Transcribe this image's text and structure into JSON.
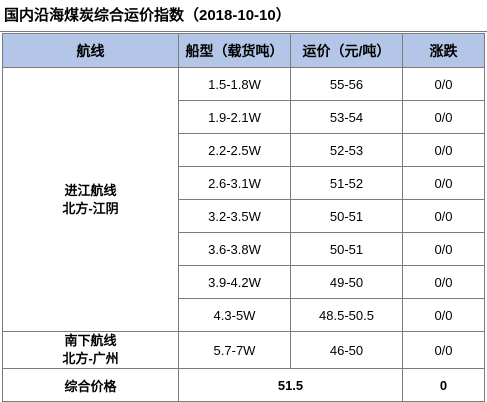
{
  "title": "国内沿海煤炭综合运价指数（2018-10-10）",
  "headers": [
    "航线",
    "船型（载货吨）",
    "运价（元/吨）",
    "涨跌"
  ],
  "groups": [
    {
      "route_lines": [
        "进江航线",
        "北方-江阴"
      ],
      "rows": [
        {
          "ship": "1.5-1.8W",
          "price": "55-56",
          "change": "0/0"
        },
        {
          "ship": "1.9-2.1W",
          "price": "53-54",
          "change": "0/0"
        },
        {
          "ship": "2.2-2.5W",
          "price": "52-53",
          "change": "0/0"
        },
        {
          "ship": "2.6-3.1W",
          "price": "51-52",
          "change": "0/0"
        },
        {
          "ship": "3.2-3.5W",
          "price": "50-51",
          "change": "0/0"
        },
        {
          "ship": "3.6-3.8W",
          "price": "50-51",
          "change": "0/0"
        },
        {
          "ship": "3.9-4.2W",
          "price": "49-50",
          "change": "0/0"
        },
        {
          "ship": "4.3-5W",
          "price": "48.5-50.5",
          "change": "0/0"
        }
      ]
    },
    {
      "route_lines": [
        "南下航线",
        "北方-广州"
      ],
      "rows": [
        {
          "ship": "5.7-7W",
          "price": "46-50",
          "change": "0/0"
        }
      ]
    }
  ],
  "summary": {
    "label": "综合价格",
    "value": "51.5",
    "change": "0"
  },
  "colors": {
    "header_bg": "#b4c6e7",
    "border": "#7b7b7b"
  }
}
